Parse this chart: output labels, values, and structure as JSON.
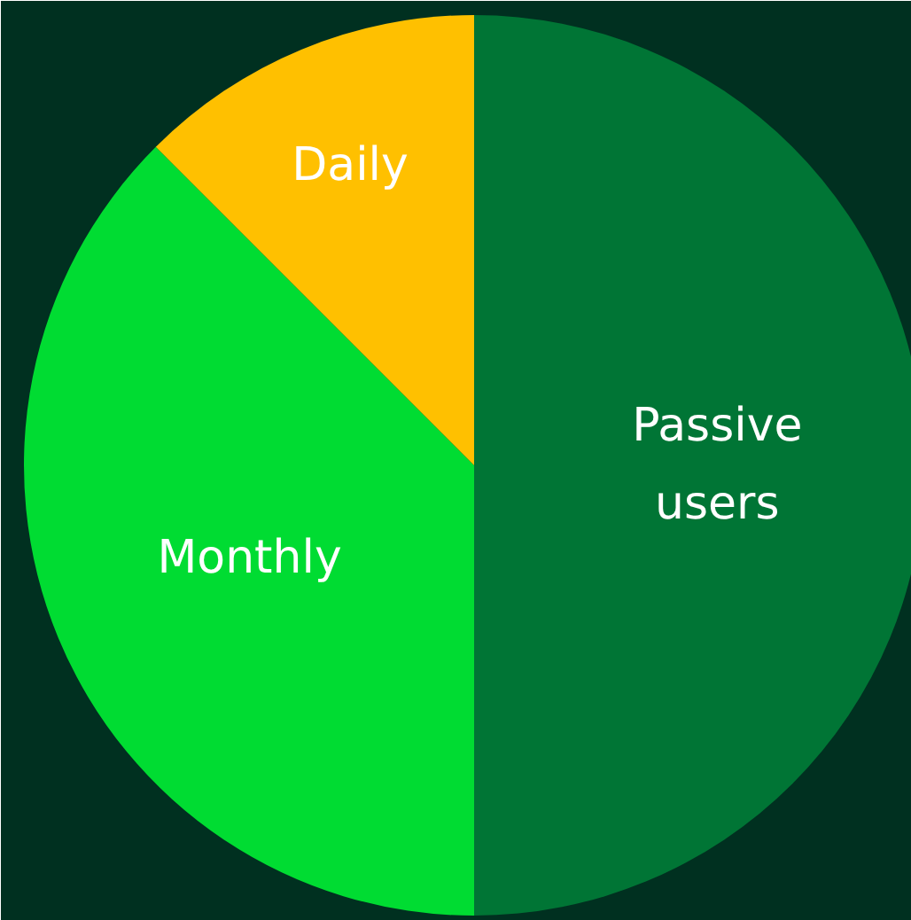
{
  "chart_data": {
    "type": "pie",
    "categories": [
      "Passive users",
      "Monthly",
      "Daily"
    ],
    "values": [
      50,
      37.5,
      12.5
    ],
    "colors": [
      "#007535",
      "#00dc32",
      "#ffc000"
    ]
  }
}
